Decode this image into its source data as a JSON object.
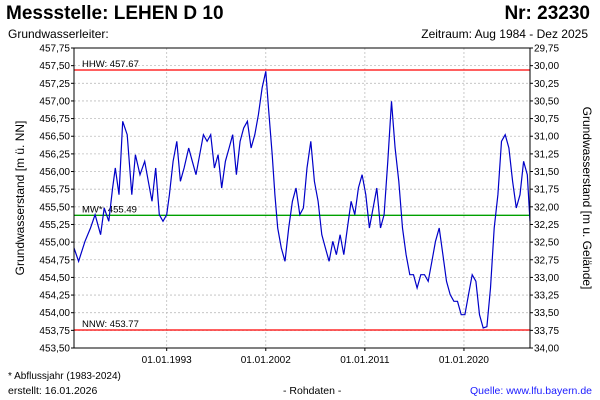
{
  "header": {
    "title": "Messstelle: LEHEN D 10",
    "nr": "Nr: 23230",
    "subtitle": "Grundwasserleiter:",
    "zeitraum": "Zeitraum: Aug 1984 - Dez 2025"
  },
  "footer": {
    "footnote": "* Abflussjahr (1983-2024)",
    "erstellt": "erstellt:  16.01.2026",
    "rohdaten": "- Rohdaten -",
    "quelle": "Quelle:  www.lfu.bayern.de"
  },
  "colors": {
    "series": "#0000c8",
    "hhw": "#ff0000",
    "mw": "#00a000",
    "nnw": "#ff0000",
    "grid": "#bdbdbd"
  },
  "chart_data": {
    "type": "line",
    "ylabel": "Grundwasserstand [m ü. NN]",
    "y2label": "Grundwasserstand [m u. Gelände]",
    "xlim": [
      "1984-08-01",
      "2025-12-31"
    ],
    "ylim": [
      453.5,
      458.0
    ],
    "y2lim": [
      34.25,
      29.75
    ],
    "yticks": [
      "453,50",
      "453,75",
      "454,00",
      "454,25",
      "454,50",
      "454,75",
      "455,00",
      "455,25",
      "455,50",
      "455,75",
      "456,00",
      "456,25",
      "456,50",
      "456,75",
      "457,00",
      "457,25",
      "457,50",
      "457,75"
    ],
    "y2ticks": [
      "29,75",
      "30,00",
      "30,25",
      "30,50",
      "30,75",
      "31,00",
      "31,25",
      "31,50",
      "31,75",
      "32,00",
      "32,25",
      "32,50",
      "32,75",
      "33,00",
      "33,25",
      "33,50",
      "33,75",
      "34,00"
    ],
    "xticks": [
      {
        "date": "1993-01-01",
        "label": "01.01.1993"
      },
      {
        "date": "2002-01-01",
        "label": "01.01.2002"
      },
      {
        "date": "2011-01-01",
        "label": "01.01.2011"
      },
      {
        "date": "2020-01-01",
        "label": "01.01.2020"
      }
    ],
    "reference_lines": [
      {
        "label": "HHW: 457.67",
        "value": 457.67,
        "color": "hhw"
      },
      {
        "label": "MW*: 455.49",
        "value": 455.49,
        "color": "mw"
      },
      {
        "label": "NNW: 453.77",
        "value": 453.77,
        "color": "nnw"
      }
    ],
    "grid": true,
    "series": [
      {
        "x": [
          "1984-08-01",
          "1985-01-01",
          "1985-08-01",
          "1986-02-01",
          "1986-07-01",
          "1987-01-01",
          "1987-05-01",
          "1987-10-01",
          "1988-02-01",
          "1988-05-01",
          "1988-09-01",
          "1989-01-01",
          "1989-06-01",
          "1989-11-01",
          "1990-03-01",
          "1990-08-01",
          "1991-01-01",
          "1991-05-01",
          "1991-09-01",
          "1992-01-01",
          "1992-05-01",
          "1992-09-01",
          "1993-01-01",
          "1993-04-01",
          "1993-08-01",
          "1993-12-01",
          "1994-04-01",
          "1994-08-01",
          "1995-01-01",
          "1995-05-01",
          "1995-09-01",
          "1996-01-01",
          "1996-05-01",
          "1996-09-01",
          "1997-01-01",
          "1997-05-01",
          "1997-09-01",
          "1998-01-01",
          "1998-05-01",
          "1998-09-01",
          "1999-01-01",
          "1999-05-01",
          "1999-09-01",
          "2000-01-01",
          "2000-05-01",
          "2000-09-01",
          "2001-01-01",
          "2001-05-01",
          "2001-09-01",
          "2002-01-01",
          "2002-04-01",
          "2002-08-01",
          "2002-11-01",
          "2003-02-01",
          "2003-06-01",
          "2003-10-01",
          "2004-02-01",
          "2004-06-01",
          "2004-10-01",
          "2005-02-01",
          "2005-06-01",
          "2005-10-01",
          "2006-02-01",
          "2006-06-01",
          "2006-10-01",
          "2007-02-01",
          "2007-06-01",
          "2007-10-01",
          "2008-02-01",
          "2008-06-01",
          "2008-10-01",
          "2009-02-01",
          "2009-06-01",
          "2009-10-01",
          "2010-02-01",
          "2010-06-01",
          "2010-10-01",
          "2011-02-01",
          "2011-06-01",
          "2011-10-01",
          "2012-02-01",
          "2012-06-01",
          "2012-10-01",
          "2013-02-01",
          "2013-06-01",
          "2013-10-01",
          "2014-02-01",
          "2014-06-01",
          "2014-10-01",
          "2015-02-01",
          "2015-06-01",
          "2015-10-01",
          "2016-02-01",
          "2016-06-01",
          "2016-10-01",
          "2017-02-01",
          "2017-06-01",
          "2017-10-01",
          "2018-02-01",
          "2018-06-01",
          "2018-10-01",
          "2019-02-01",
          "2019-06-01",
          "2019-10-01",
          "2020-02-01",
          "2020-06-01",
          "2020-10-01",
          "2021-02-01",
          "2021-06-01",
          "2021-10-01",
          "2022-02-01",
          "2022-06-01",
          "2022-10-01",
          "2023-02-01",
          "2023-06-01",
          "2023-10-01",
          "2024-02-01",
          "2024-06-01",
          "2024-10-01",
          "2025-02-01",
          "2025-06-01",
          "2025-10-01",
          "2025-12-31"
        ],
        "y": [
          455.0,
          454.8,
          455.1,
          455.3,
          455.5,
          455.2,
          455.6,
          455.4,
          455.9,
          456.2,
          455.8,
          456.9,
          456.7,
          455.8,
          456.4,
          456.1,
          456.3,
          456.0,
          455.7,
          456.2,
          455.5,
          455.4,
          455.5,
          455.8,
          456.3,
          456.6,
          456.0,
          456.2,
          456.5,
          456.3,
          456.1,
          456.4,
          456.7,
          456.6,
          456.7,
          456.2,
          456.4,
          455.9,
          456.3,
          456.5,
          456.7,
          456.1,
          456.6,
          456.8,
          456.9,
          456.5,
          456.7,
          457.0,
          457.4,
          457.65,
          457.1,
          456.4,
          455.8,
          455.3,
          455.0,
          454.8,
          455.3,
          455.7,
          455.9,
          455.5,
          455.6,
          456.2,
          456.6,
          456.0,
          455.7,
          455.2,
          455.0,
          454.8,
          455.1,
          454.9,
          455.2,
          454.9,
          455.3,
          455.7,
          455.5,
          455.9,
          456.1,
          455.8,
          455.3,
          455.6,
          455.9,
          455.3,
          455.5,
          456.3,
          457.2,
          456.5,
          456.0,
          455.3,
          454.9,
          454.6,
          454.6,
          454.4,
          454.6,
          454.6,
          454.5,
          454.8,
          455.1,
          455.3,
          454.9,
          454.5,
          454.3,
          454.2,
          454.2,
          454.0,
          454.0,
          454.3,
          454.6,
          454.5,
          454.0,
          453.8,
          453.82,
          454.4,
          455.3,
          455.8,
          456.6,
          456.7,
          456.5,
          456.0,
          455.6,
          455.8,
          456.3,
          456.1,
          455.4
        ]
      }
    ]
  }
}
